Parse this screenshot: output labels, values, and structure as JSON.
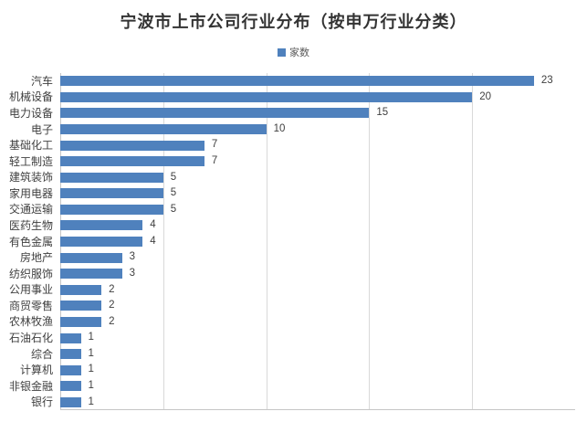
{
  "title": "宁波市上市公司行业分布（按申万行业分类）",
  "legend": {
    "label": "家数",
    "swatch_color": "#4F81BD"
  },
  "chart_data": {
    "type": "bar",
    "orientation": "horizontal",
    "title": "宁波市上市公司行业分布（按申万行业分类）",
    "legend_entries": [
      "家数"
    ],
    "legend_position": "top",
    "categories": [
      "汽车",
      "机械设备",
      "电力设备",
      "电子",
      "基础化工",
      "轻工制造",
      "建筑装饰",
      "家用电器",
      "交通运输",
      "医药生物",
      "有色金属",
      "房地产",
      "纺织服饰",
      "公用事业",
      "商贸零售",
      "农林牧渔",
      "石油石化",
      "综合",
      "计算机",
      "非银金融",
      "银行"
    ],
    "values": [
      23,
      20,
      15,
      10,
      7,
      7,
      5,
      5,
      5,
      4,
      4,
      3,
      3,
      2,
      2,
      2,
      1,
      1,
      1,
      1,
      1
    ],
    "xlabel": "",
    "ylabel": "",
    "xlim": [
      0,
      25
    ],
    "gridline_interval": 5,
    "grid": true,
    "data_labels": true,
    "bar_color": "#4F81BD",
    "gridline_color": "#D9D9D9",
    "axis_color": "#C6C6C6",
    "label_color": "#404040"
  }
}
